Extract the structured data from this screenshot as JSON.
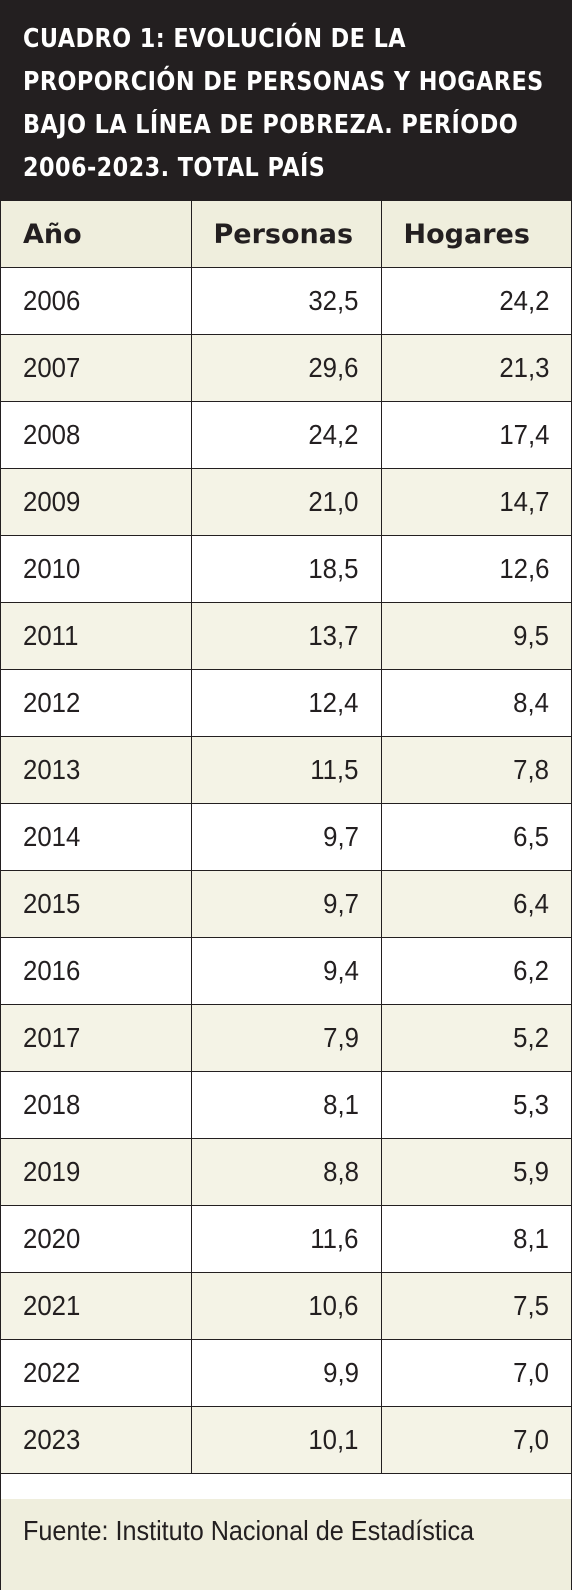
{
  "chart_data": {
    "type": "table",
    "title": "CUADRO 1: EVOLUCIÓN DE LA PROPORCIÓN DE PERSONAS Y HOGARES BAJO LA LÍNEA DE POBREZA. PERÍODO 2006-2023. TOTAL PAÍS",
    "title_lines": [
      "CUADRO 1: EVOLUCIÓN DE LA",
      "PROPORCIÓN DE PERSONAS Y HOGARES",
      "BAJO LA LÍNEA DE POBREZA. PERÍODO",
      "2006-2023. TOTAL PAÍS"
    ],
    "columns": [
      "Año",
      "Personas",
      "Hogares"
    ],
    "rows": [
      [
        "2006",
        "32,5",
        "24,2"
      ],
      [
        "2007",
        "29,6",
        "21,3"
      ],
      [
        "2008",
        "24,2",
        "17,4"
      ],
      [
        "2009",
        "21,0",
        "14,7"
      ],
      [
        "2010",
        "18,5",
        "12,6"
      ],
      [
        "2011",
        "13,7",
        "9,5"
      ],
      [
        "2012",
        "12,4",
        "8,4"
      ],
      [
        "2013",
        "11,5",
        "7,8"
      ],
      [
        "2014",
        "9,7",
        "6,5"
      ],
      [
        "2015",
        "9,7",
        "6,4"
      ],
      [
        "2016",
        "9,4",
        "6,2"
      ],
      [
        "2017",
        "7,9",
        "5,2"
      ],
      [
        "2018",
        "8,1",
        "5,3"
      ],
      [
        "2019",
        "8,8",
        "5,9"
      ],
      [
        "2020",
        "11,6",
        "8,1"
      ],
      [
        "2021",
        "10,6",
        "7,5"
      ],
      [
        "2022",
        "9,9",
        "7,0"
      ],
      [
        "2023",
        "10,1",
        "7,0"
      ]
    ],
    "source": "Fuente: Instituto Nacional de Estadística"
  },
  "colors": {
    "title_background": "#231f20",
    "header_background": "#efeedd",
    "stripe_background": "#f4f3e6",
    "border": "#231f20"
  }
}
